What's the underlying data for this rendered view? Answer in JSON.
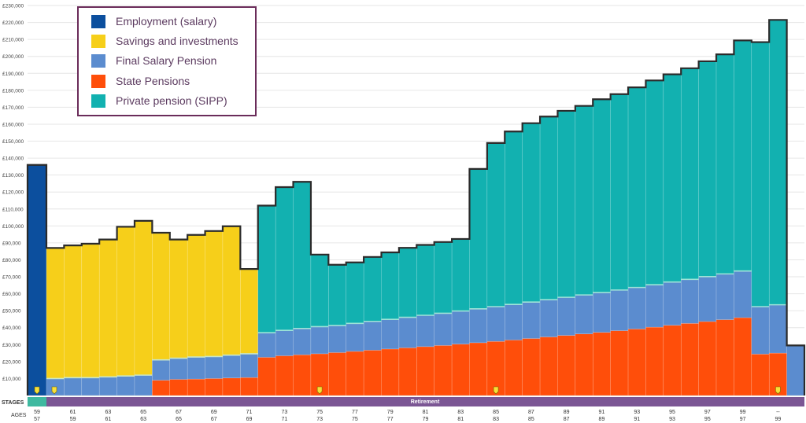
{
  "chart_data": {
    "type": "bar",
    "stacked": true,
    "ylim": [
      0,
      230000
    ],
    "y_ticks": [
      "£10,000",
      "£20,000",
      "£30,000",
      "£40,000",
      "£50,000",
      "£60,000",
      "£70,000",
      "£80,000",
      "£90,000",
      "£100,000",
      "£110,000",
      "£120,000",
      "£130,000",
      "£140,000",
      "£150,000",
      "£160,000",
      "£170,000",
      "£180,000",
      "£190,000",
      "£200,000",
      "£210,000",
      "£220,000",
      "£230,000"
    ],
    "age_row1": [
      "59",
      "61",
      "63",
      "65",
      "67",
      "69",
      "71",
      "73",
      "75",
      "77",
      "79",
      "81",
      "83",
      "85",
      "87",
      "89",
      "91",
      "93",
      "95",
      "97",
      "99",
      "--"
    ],
    "age_row2": [
      "57",
      "59",
      "61",
      "63",
      "65",
      "67",
      "69",
      "71",
      "73",
      "75",
      "77",
      "79",
      "81",
      "83",
      "85",
      "87",
      "89",
      "91",
      "93",
      "95",
      "97",
      "99"
    ],
    "series": [
      {
        "name": "Employment (salary)",
        "color": "#0c4f9e",
        "values": [
          136000,
          0,
          0,
          0,
          0,
          0,
          0,
          0,
          0,
          0,
          0,
          0,
          0,
          0,
          0,
          0,
          0,
          0,
          0,
          0,
          0,
          0,
          0,
          0,
          0,
          0,
          0,
          0,
          0,
          0,
          0,
          0,
          0,
          0,
          0,
          0,
          0,
          0,
          0,
          0,
          0,
          0,
          0,
          0
        ]
      },
      {
        "name": "Savings and investments",
        "color": "#f6cf1a",
        "values": [
          0,
          77000,
          78000,
          79000,
          81000,
          88000,
          91000,
          75000,
          70000,
          72000,
          74000,
          76000,
          50000,
          0,
          0,
          0,
          0,
          0,
          0,
          0,
          0,
          0,
          0,
          0,
          0,
          0,
          0,
          0,
          0,
          0,
          0,
          0,
          0,
          0,
          0,
          0,
          0,
          0,
          0,
          0,
          0,
          0,
          0,
          0
        ]
      },
      {
        "name": "Final Salary Pension",
        "color": "#5b8ccf",
        "values": [
          0,
          10000,
          10500,
          10500,
          11000,
          11500,
          12000,
          12000,
          12500,
          13000,
          13000,
          13500,
          14000,
          14500,
          15000,
          15500,
          16000,
          16000,
          16500,
          17000,
          17500,
          18000,
          18500,
          19000,
          19500,
          20000,
          20500,
          21000,
          21500,
          22000,
          22500,
          23000,
          23500,
          24000,
          24500,
          25000,
          25500,
          26000,
          26500,
          27000,
          27500,
          28000,
          28500,
          29500
        ]
      },
      {
        "name": "State Pensions",
        "color": "#ff4e0a",
        "values": [
          0,
          0,
          0,
          0,
          0,
          0,
          0,
          9000,
          9500,
          9700,
          10000,
          10300,
          10600,
          22500,
          23400,
          24000,
          24600,
          25300,
          26000,
          26700,
          27400,
          28100,
          28800,
          29500,
          30300,
          31100,
          31900,
          32700,
          33600,
          34500,
          35400,
          36300,
          37200,
          38200,
          39200,
          40300,
          41400,
          42500,
          43600,
          44700,
          45900,
          24400,
          25000
        ]
      },
      {
        "name": "Private pension (SIPP)",
        "color": "#12b1b0",
        "values": [
          0,
          0,
          0,
          0,
          0,
          0,
          0,
          0,
          0,
          0,
          0,
          0,
          0,
          75000,
          84500,
          86500,
          42500,
          35800,
          36000,
          38000,
          39500,
          41000,
          41500,
          42000,
          42500,
          82500,
          96500,
          102000,
          105500,
          108000,
          110000,
          111500,
          114000,
          115500,
          118000,
          120500,
          122500,
          124500,
          127000,
          129500,
          136000,
          156000,
          168000
        ]
      }
    ]
  },
  "legend": {
    "items": [
      {
        "label": "Employment (salary)",
        "color": "#0c4f9e"
      },
      {
        "label": "Savings and investments",
        "color": "#f6cf1a"
      },
      {
        "label": "Final Salary Pension",
        "color": "#5b8ccf"
      },
      {
        "label": "State Pensions",
        "color": "#ff4e0a"
      },
      {
        "label": "Private pension (SIPP)",
        "color": "#12b1b0"
      }
    ]
  },
  "stages": {
    "label": "STAGES",
    "retirement_label": "Retirement",
    "ages_label": "AGES"
  }
}
